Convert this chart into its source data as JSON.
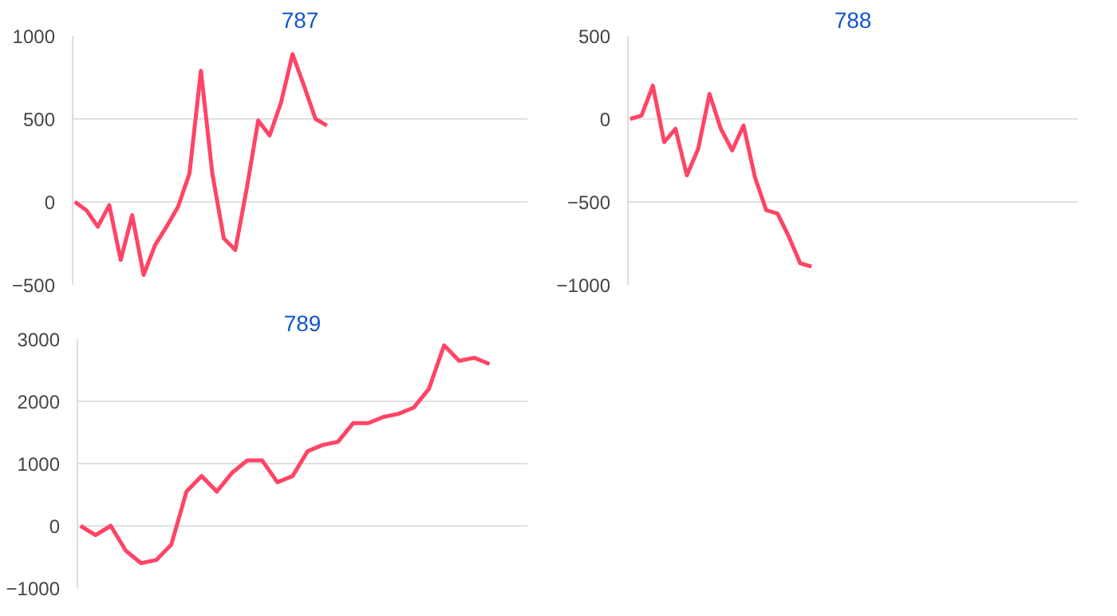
{
  "chart_data": [
    {
      "type": "line",
      "title": "787",
      "categories": [
        null,
        null,
        null,
        null,
        null,
        null,
        null,
        null,
        null,
        null,
        null,
        null,
        null,
        null,
        null,
        null,
        null,
        null,
        null,
        null,
        null,
        null,
        null,
        null,
        null,
        null,
        null,
        null,
        null,
        null,
        null,
        null,
        null,
        null,
        null,
        null,
        null,
        null,
        null,
        null
      ],
      "series": [
        {
          "color": "#ff4466",
          "values": [
            0,
            -50,
            -150,
            -20,
            -350,
            -80,
            -440,
            -260,
            -150,
            -30,
            170,
            790,
            170,
            -220,
            -290,
            80,
            490,
            400,
            600,
            890,
            700,
            500,
            460,
            null,
            null,
            null,
            null,
            null,
            null,
            null,
            null,
            null,
            null,
            null,
            null,
            null,
            null,
            null,
            null,
            null
          ]
        }
      ],
      "ylim": [
        -500,
        1000
      ],
      "yticks": [
        -500,
        0,
        500,
        1000
      ],
      "grid": "y",
      "tick_labels": "y"
    },
    {
      "type": "line",
      "title": "788",
      "categories": [
        null,
        null,
        null,
        null,
        null,
        null,
        null,
        null,
        null,
        null,
        null,
        null,
        null,
        null,
        null,
        null,
        null,
        null,
        null,
        null,
        null,
        null,
        null,
        null,
        null,
        null,
        null,
        null,
        null,
        null,
        null,
        null,
        null,
        null,
        null,
        null,
        null,
        null,
        null,
        null
      ],
      "series": [
        {
          "color": "#ff4466",
          "values": [
            0,
            20,
            200,
            -140,
            -60,
            -340,
            -180,
            150,
            -60,
            -190,
            -40,
            -350,
            -550,
            -570,
            -710,
            -870,
            -890,
            null,
            null,
            null,
            null,
            null,
            null,
            null,
            null,
            null,
            null,
            null,
            null,
            null,
            null,
            null,
            null,
            null,
            null,
            null,
            null,
            null,
            null,
            null
          ]
        }
      ],
      "ylim": [
        -1000,
        500
      ],
      "yticks": [
        -1000,
        -500,
        0,
        500
      ],
      "grid": "y",
      "tick_labels": "y"
    },
    {
      "type": "line",
      "title": "789",
      "categories": [
        null,
        null,
        null,
        null,
        null,
        null,
        null,
        null,
        null,
        null,
        null,
        null,
        null,
        null,
        null,
        null,
        null,
        null,
        null,
        null,
        null,
        null,
        null,
        null,
        null,
        null,
        null,
        null,
        null,
        null
      ],
      "series": [
        {
          "color": "#ff4466",
          "values": [
            0,
            -150,
            0,
            -400,
            -600,
            -550,
            -300,
            550,
            800,
            550,
            850,
            1050,
            1050,
            700,
            800,
            1200,
            1300,
            1350,
            1650,
            1650,
            1750,
            1800,
            1900,
            2200,
            2900,
            2650,
            2700,
            2600,
            null,
            null
          ]
        }
      ],
      "ylim": [
        -1000,
        3000
      ],
      "yticks": [
        -1000,
        0,
        1000,
        2000,
        3000
      ],
      "grid": "y",
      "tick_labels": "y"
    }
  ]
}
